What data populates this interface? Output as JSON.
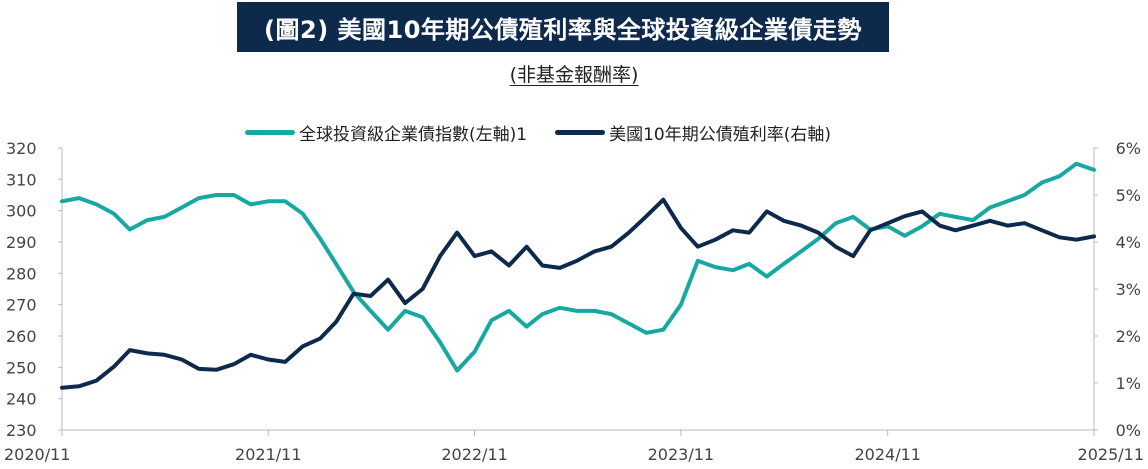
{
  "header": {
    "title": "(圖2) 美國10年期公債殖利率與全球投資級企業債走勢",
    "subtitle": "(非基金報酬率)"
  },
  "legend": {
    "items": [
      {
        "label": "全球投資級企業債指數(左軸)1",
        "color": "#17a9a1"
      },
      {
        "label": "美國10年期公債殖利率(右軸)",
        "color": "#0d2a4d"
      }
    ]
  },
  "chart_data": {
    "type": "line",
    "x_ticks": [
      "2020/11",
      "2021/11",
      "2022/11",
      "2023/11",
      "2024/11",
      "2025/11"
    ],
    "y_left": {
      "ticks": [
        "230",
        "240",
        "250",
        "260",
        "270",
        "280",
        "290",
        "300",
        "310",
        "320"
      ],
      "ylim": [
        230,
        320
      ]
    },
    "y_right": {
      "ticks": [
        "0%",
        "1%",
        "2%",
        "3%",
        "4%",
        "5%",
        "6%"
      ],
      "ylim": [
        0,
        6
      ]
    },
    "grid": false,
    "legend_position": "top-center",
    "series": [
      {
        "name": "全球投資級企業債指數(左軸)1",
        "axis": "left",
        "color": "#17a9a1",
        "points": [
          [
            "2020-11-01",
            303
          ],
          [
            "2020-12-01",
            304
          ],
          [
            "2021-01-01",
            302
          ],
          [
            "2021-02-01",
            299
          ],
          [
            "2021-03-01",
            294
          ],
          [
            "2021-04-01",
            297
          ],
          [
            "2021-05-01",
            298
          ],
          [
            "2021-06-01",
            301
          ],
          [
            "2021-07-01",
            304
          ],
          [
            "2021-08-01",
            305
          ],
          [
            "2021-09-01",
            305
          ],
          [
            "2021-10-01",
            302
          ],
          [
            "2021-11-01",
            303
          ],
          [
            "2021-12-01",
            303
          ],
          [
            "2022-01-01",
            299
          ],
          [
            "2022-02-01",
            291
          ],
          [
            "2022-03-01",
            283
          ],
          [
            "2022-04-01",
            274
          ],
          [
            "2022-05-01",
            268
          ],
          [
            "2022-06-01",
            262
          ],
          [
            "2022-07-01",
            268
          ],
          [
            "2022-08-01",
            266
          ],
          [
            "2022-09-01",
            258
          ],
          [
            "2022-10-01",
            249
          ],
          [
            "2022-11-01",
            255
          ],
          [
            "2022-12-01",
            265
          ],
          [
            "2023-01-01",
            268
          ],
          [
            "2023-02-01",
            263
          ],
          [
            "2023-03-01",
            267
          ],
          [
            "2023-04-01",
            269
          ],
          [
            "2023-05-01",
            268
          ],
          [
            "2023-06-01",
            268
          ],
          [
            "2023-07-01",
            267
          ],
          [
            "2023-08-01",
            264
          ],
          [
            "2023-09-01",
            261
          ],
          [
            "2023-10-01",
            262
          ],
          [
            "2023-11-01",
            270
          ],
          [
            "2023-12-01",
            284
          ],
          [
            "2024-01-01",
            282
          ],
          [
            "2024-02-01",
            281
          ],
          [
            "2024-03-01",
            283
          ],
          [
            "2024-04-01",
            279
          ],
          [
            "2024-05-01",
            283
          ],
          [
            "2024-06-01",
            287
          ],
          [
            "2024-07-01",
            291
          ],
          [
            "2024-08-01",
            296
          ],
          [
            "2024-09-01",
            298
          ],
          [
            "2024-10-01",
            294
          ],
          [
            "2024-11-01",
            295
          ],
          [
            "2024-12-01",
            292
          ],
          [
            "2025-01-01",
            295
          ],
          [
            "2025-02-01",
            299
          ],
          [
            "2025-03-01",
            298
          ],
          [
            "2025-04-01",
            297
          ],
          [
            "2025-05-01",
            301
          ],
          [
            "2025-06-01",
            303
          ],
          [
            "2025-07-01",
            305
          ],
          [
            "2025-08-01",
            309
          ],
          [
            "2025-09-01",
            311
          ],
          [
            "2025-10-01",
            315
          ],
          [
            "2025-11-01",
            313
          ]
        ]
      },
      {
        "name": "美國10年期公債殖利率(右軸)",
        "axis": "right",
        "color": "#0d2a4d",
        "points": [
          [
            "2020-11-01",
            0.9
          ],
          [
            "2020-12-01",
            0.93
          ],
          [
            "2021-01-01",
            1.05
          ],
          [
            "2021-02-01",
            1.35
          ],
          [
            "2021-03-01",
            1.7
          ],
          [
            "2021-04-01",
            1.63
          ],
          [
            "2021-05-01",
            1.6
          ],
          [
            "2021-06-01",
            1.5
          ],
          [
            "2021-07-01",
            1.3
          ],
          [
            "2021-08-01",
            1.28
          ],
          [
            "2021-09-01",
            1.4
          ],
          [
            "2021-10-01",
            1.6
          ],
          [
            "2021-11-01",
            1.5
          ],
          [
            "2021-12-01",
            1.45
          ],
          [
            "2022-01-01",
            1.78
          ],
          [
            "2022-02-01",
            1.95
          ],
          [
            "2022-03-01",
            2.3
          ],
          [
            "2022-04-01",
            2.9
          ],
          [
            "2022-05-01",
            2.85
          ],
          [
            "2022-06-01",
            3.2
          ],
          [
            "2022-07-01",
            2.7
          ],
          [
            "2022-08-01",
            3.0
          ],
          [
            "2022-09-01",
            3.7
          ],
          [
            "2022-10-01",
            4.2
          ],
          [
            "2022-11-01",
            3.7
          ],
          [
            "2022-12-01",
            3.8
          ],
          [
            "2023-01-01",
            3.5
          ],
          [
            "2023-02-01",
            3.9
          ],
          [
            "2023-03-01",
            3.5
          ],
          [
            "2023-04-01",
            3.45
          ],
          [
            "2023-05-01",
            3.6
          ],
          [
            "2023-06-01",
            3.8
          ],
          [
            "2023-07-01",
            3.9
          ],
          [
            "2023-08-01",
            4.2
          ],
          [
            "2023-09-01",
            4.55
          ],
          [
            "2023-10-01",
            4.9
          ],
          [
            "2023-11-01",
            4.3
          ],
          [
            "2023-12-01",
            3.9
          ],
          [
            "2024-01-01",
            4.05
          ],
          [
            "2024-02-01",
            4.25
          ],
          [
            "2024-03-01",
            4.2
          ],
          [
            "2024-04-01",
            4.65
          ],
          [
            "2024-05-01",
            4.45
          ],
          [
            "2024-06-01",
            4.35
          ],
          [
            "2024-07-01",
            4.2
          ],
          [
            "2024-08-01",
            3.9
          ],
          [
            "2024-09-01",
            3.7
          ],
          [
            "2024-10-01",
            4.25
          ],
          [
            "2024-11-01",
            4.4
          ],
          [
            "2024-12-01",
            4.55
          ],
          [
            "2025-01-01",
            4.65
          ],
          [
            "2025-02-01",
            4.35
          ],
          [
            "2025-03-01",
            4.25
          ],
          [
            "2025-04-01",
            4.35
          ],
          [
            "2025-05-01",
            4.45
          ],
          [
            "2025-06-01",
            4.35
          ],
          [
            "2025-07-01",
            4.4
          ],
          [
            "2025-08-01",
            4.25
          ],
          [
            "2025-09-01",
            4.1
          ],
          [
            "2025-10-01",
            4.05
          ],
          [
            "2025-11-01",
            4.12
          ]
        ]
      }
    ]
  }
}
